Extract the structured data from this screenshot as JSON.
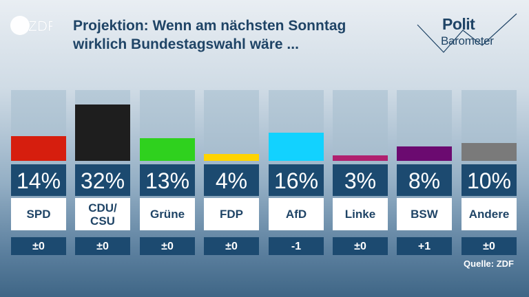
{
  "header": {
    "logo_text": "ZDF",
    "title_line1": "Projektion: Wenn am nächsten Sonntag",
    "title_line2": "wirklich Bundestagswahl wäre ...",
    "brand_line1": "Polit",
    "brand_line2": "Barometer"
  },
  "chart_data": {
    "type": "bar",
    "title": "Projektion: Wenn am nächsten Sonntag wirklich Bundestagswahl wäre ...",
    "ylim": [
      0,
      40
    ],
    "grid": false,
    "categories": [
      "SPD",
      "CDU/ CSU",
      "Grüne",
      "FDP",
      "AfD",
      "Linke",
      "BSW",
      "Andere"
    ],
    "category_lines": [
      [
        "SPD"
      ],
      [
        "CDU/",
        "CSU"
      ],
      [
        "Grüne"
      ],
      [
        "FDP"
      ],
      [
        "AfD"
      ],
      [
        "Linke"
      ],
      [
        "BSW"
      ],
      [
        "Andere"
      ]
    ],
    "values": [
      14,
      32,
      13,
      4,
      16,
      3,
      8,
      10
    ],
    "value_labels": [
      "14%",
      "32%",
      "13%",
      "4%",
      "16%",
      "3%",
      "8%",
      "10%"
    ],
    "changes": [
      "±0",
      "±0",
      "±0",
      "±0",
      "-1",
      "±0",
      "+1",
      "±0"
    ],
    "colors": [
      "#d61e0e",
      "#1e1e1e",
      "#2fd11e",
      "#ffd400",
      "#12d2ff",
      "#b0206e",
      "#6b0a70",
      "#7a7a7a"
    ]
  },
  "footer": {
    "source": "Quelle: ZDF"
  }
}
